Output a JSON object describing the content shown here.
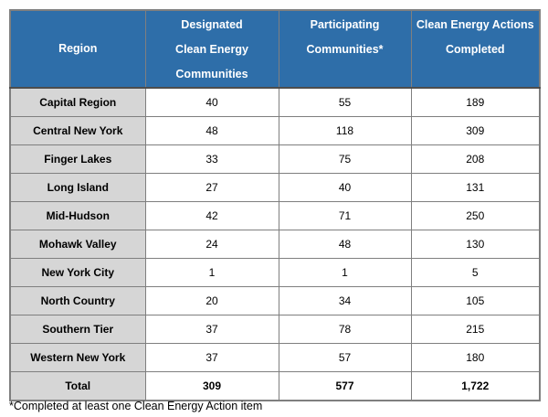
{
  "table": {
    "columns": [
      {
        "label": "Region"
      },
      {
        "label": "Designated\nClean Energy\nCommunities"
      },
      {
        "label": "Participating\nCommunities*"
      },
      {
        "label": "Clean Energy Actions\nCompleted"
      }
    ],
    "rows": [
      {
        "region": "Capital Region",
        "values": [
          "40",
          "55",
          "189"
        ]
      },
      {
        "region": "Central New York",
        "values": [
          "48",
          "118",
          "309"
        ]
      },
      {
        "region": "Finger Lakes",
        "values": [
          "33",
          "75",
          "208"
        ]
      },
      {
        "region": "Long Island",
        "values": [
          "27",
          "40",
          "131"
        ]
      },
      {
        "region": "Mid-Hudson",
        "values": [
          "42",
          "71",
          "250"
        ]
      },
      {
        "region": "Mohawk Valley",
        "values": [
          "24",
          "48",
          "130"
        ]
      },
      {
        "region": "New York City",
        "values": [
          "1",
          "1",
          "5"
        ]
      },
      {
        "region": "North Country",
        "values": [
          "20",
          "34",
          "105"
        ]
      },
      {
        "region": "Southern Tier",
        "values": [
          "37",
          "78",
          "215"
        ]
      },
      {
        "region": "Western New York",
        "values": [
          "37",
          "57",
          "180"
        ]
      }
    ],
    "total": {
      "region": "Total",
      "values": [
        "309",
        "577",
        "1,722"
      ]
    }
  },
  "footnote": "*Completed at least one Clean Energy Action item",
  "colors": {
    "header_bg": "#2e6ea9",
    "header_text": "#ffffff",
    "region_column_bg": "#d6d6d6",
    "cell_bg": "#ffffff",
    "border": "#7f7f7f",
    "header_divider": "#4d4d4d",
    "text": "#000000"
  }
}
